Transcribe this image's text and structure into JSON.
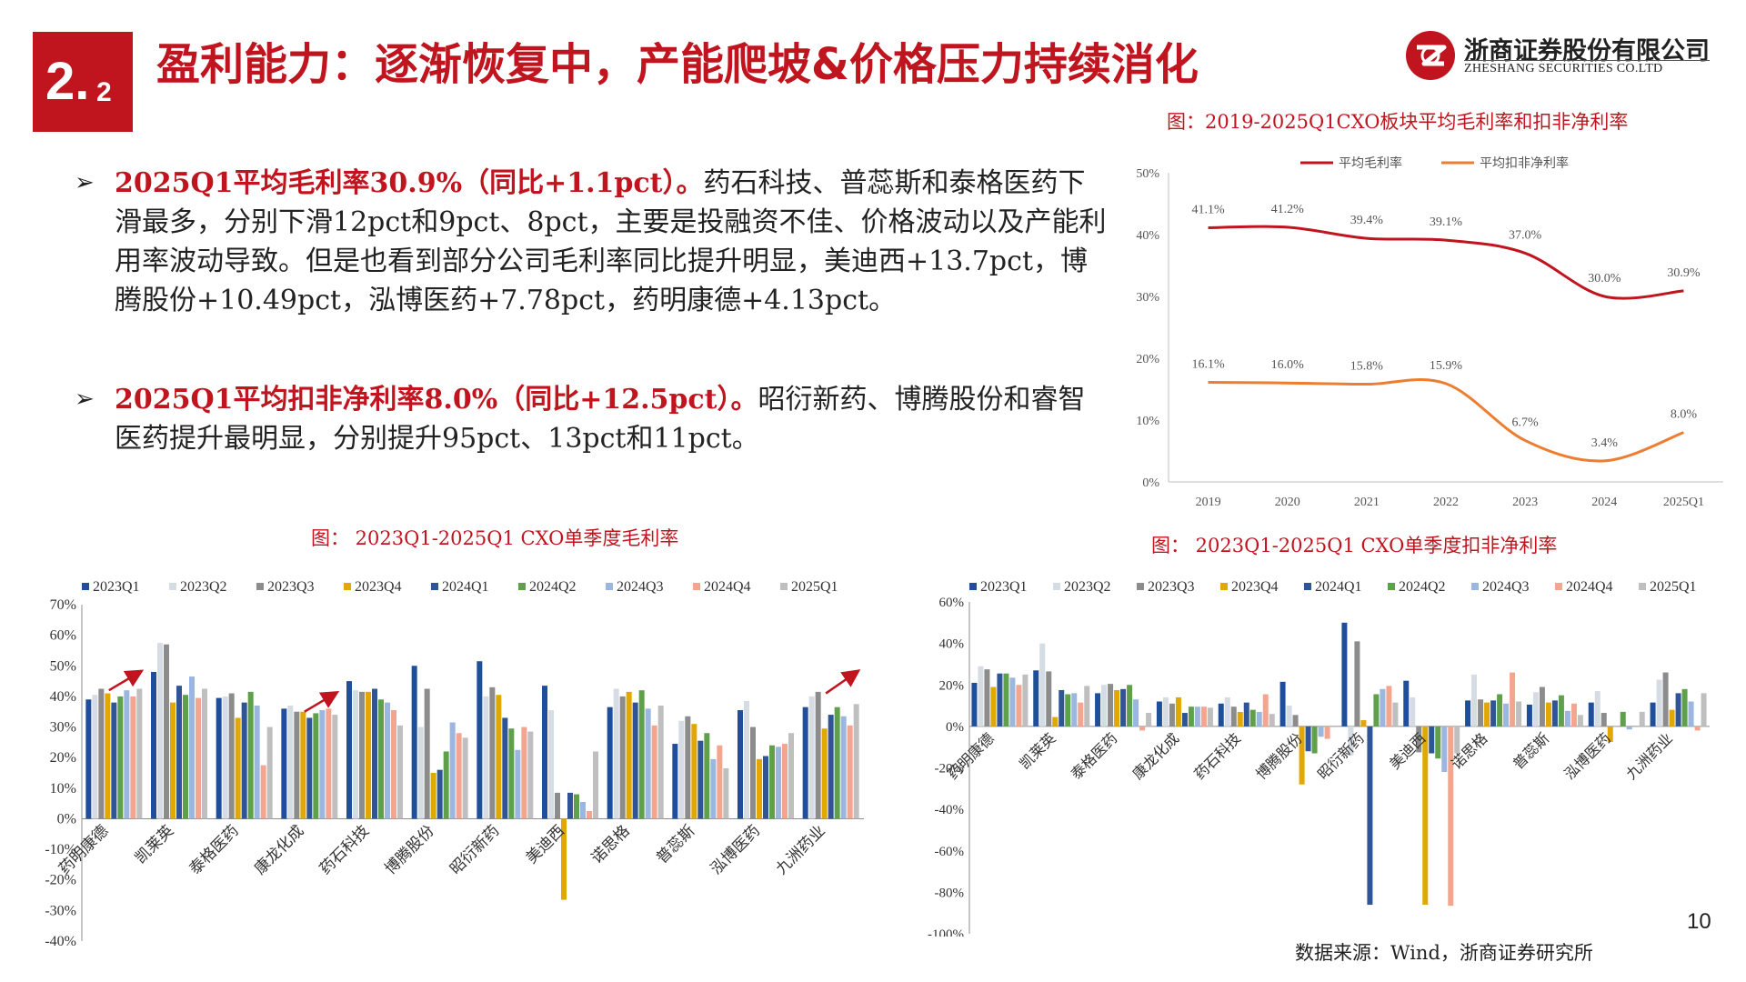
{
  "header": {
    "section_num_main": "2.",
    "section_num_sub": "2",
    "title": "盈利能力：逐渐恢复中，产能爬坡&价格压力持续消化",
    "logo_cn": "浙商证券股份有限公司",
    "logo_en": "ZHESHANG SECURITIES CO.LTD",
    "brand_color": "#c0141e"
  },
  "bullets": [
    {
      "highlight": "2025Q1平均毛利率30.9%（同比+1.1pct）。",
      "text": "药石科技、普蕊斯和泰格医药下滑最多，分别下滑12pct和9pct、8pct，主要是投融资不佳、价格波动以及产能利用率波动导致。但是也看到部分公司毛利率同比提升明显，美迪西+13.7pct，博腾股份+10.49pct，泓博医药+7.78pct，药明康德+4.13pct。"
    },
    {
      "highlight": "2025Q1平均扣非净利率8.0%（同比+12.5pct）。",
      "text": "昭衍新药、博腾股份和睿智医药提升最明显，分别提升95pct、13pct和11pct。"
    }
  ],
  "fig_top": {
    "caption": "图：2019-2025Q1CXO板块平均毛利率和扣非净利率"
  },
  "fig_left": {
    "caption": "图： 2023Q1-2025Q1 CXO单季度毛利率"
  },
  "fig_right": {
    "caption": "图： 2023Q1-2025Q1 CXO单季度扣非净利率"
  },
  "source": "数据来源：Wind，浙商证券研究所",
  "page_number": "10",
  "chart_data": [
    {
      "type": "line",
      "title": "",
      "x": [
        "2019",
        "2020",
        "2021",
        "2022",
        "2023",
        "2024",
        "2025Q1"
      ],
      "ylim": [
        0,
        50
      ],
      "yticks": [
        "0%",
        "10%",
        "20%",
        "30%",
        "40%",
        "50%"
      ],
      "legend_position": "top",
      "grid": false,
      "series": [
        {
          "name": "平均毛利率",
          "values": [
            41.1,
            41.2,
            39.4,
            39.1,
            37.0,
            30.0,
            30.9
          ],
          "labels": [
            "41.1%",
            "41.2%",
            "39.4%",
            "39.1%",
            "37.0%",
            "30.0%",
            "30.9%"
          ],
          "color": "#c0141e"
        },
        {
          "name": "平均扣非净利率",
          "values": [
            16.1,
            16.0,
            15.8,
            15.9,
            6.7,
            3.4,
            8.0
          ],
          "labels": [
            "16.1%",
            "16.0%",
            "15.8%",
            "15.9%",
            "6.7%",
            "3.4%",
            "8.0%"
          ],
          "color": "#ed7d31"
        }
      ]
    },
    {
      "type": "bar",
      "title": "",
      "categories": [
        "药明康德",
        "凯莱英",
        "泰格医药",
        "康龙化成",
        "药石科技",
        "博腾股份",
        "昭衍新药",
        "美迪西",
        "诺思格",
        "普蕊斯",
        "泓博医药",
        "九洲药业"
      ],
      "ylim": [
        -40,
        70
      ],
      "yticks": [
        "-40%",
        "-30%",
        "-20%",
        "-10%",
        "0%",
        "10%",
        "20%",
        "30%",
        "40%",
        "50%",
        "60%",
        "70%"
      ],
      "legend_position": "top",
      "grid": false,
      "series": [
        {
          "name": "2023Q1",
          "color": "#1f4e9a",
          "values": [
            39,
            48,
            39.5,
            36,
            45,
            50,
            51.5,
            43.5,
            36.5,
            24.5,
            35.5,
            36.5
          ]
        },
        {
          "name": "2023Q2",
          "color": "#d6dce4",
          "values": [
            40.5,
            57.5,
            40,
            37,
            42,
            30,
            40,
            35.5,
            42.5,
            32,
            38.5,
            40
          ]
        },
        {
          "name": "2023Q3",
          "color": "#8c8c8c",
          "values": [
            42.5,
            57,
            41,
            35,
            41.5,
            42.5,
            43,
            8.5,
            40,
            33.5,
            30,
            41.5
          ]
        },
        {
          "name": "2023Q4",
          "color": "#e0a800",
          "values": [
            41,
            38,
            33,
            35,
            41.5,
            15,
            40.5,
            -26.5,
            41.5,
            31,
            19.5,
            29.5
          ]
        },
        {
          "name": "2024Q1",
          "color": "#2f5597",
          "values": [
            38,
            43.5,
            38,
            33,
            42.5,
            16,
            33,
            8.5,
            38,
            25.5,
            20.5,
            34
          ]
        },
        {
          "name": "2024Q2",
          "color": "#5fa14a",
          "values": [
            40,
            40.5,
            41.5,
            34.5,
            39,
            22,
            29.5,
            8,
            42,
            28,
            24,
            36.5
          ]
        },
        {
          "name": "2024Q3",
          "color": "#9bb7e0",
          "values": [
            42,
            46.5,
            37,
            35.5,
            38,
            31.5,
            22.5,
            5.5,
            36,
            19.5,
            23.5,
            33.5
          ]
        },
        {
          "name": "2024Q4",
          "color": "#f4a590",
          "values": [
            40,
            39.5,
            17.5,
            36,
            35.5,
            28,
            30,
            2.5,
            30.5,
            24,
            24.5,
            30.5
          ]
        },
        {
          "name": "2025Q1",
          "color": "#bfbfbf",
          "values": [
            42.5,
            42.5,
            30,
            34,
            30.5,
            26.5,
            28.5,
            22,
            37,
            16.5,
            28,
            37.5
          ]
        }
      ]
    },
    {
      "type": "bar",
      "title": "",
      "categories": [
        "药明康德",
        "凯莱英",
        "泰格医药",
        "康龙化成",
        "药石科技",
        "博腾股份",
        "昭衍新药",
        "美迪西",
        "诺思格",
        "普蕊斯",
        "泓博医药",
        "九洲药业"
      ],
      "ylim": [
        -100,
        60
      ],
      "yticks": [
        "-100%",
        "-80%",
        "-60%",
        "-40%",
        "-20%",
        "0%",
        "20%",
        "40%",
        "60%"
      ],
      "legend_position": "top",
      "grid": false,
      "series": [
        {
          "name": "2023Q1",
          "color": "#1f4e9a",
          "values": [
            21,
            27,
            16,
            12,
            11,
            21.5,
            50,
            22,
            12.5,
            10.5,
            11.5,
            11.5
          ]
        },
        {
          "name": "2023Q2",
          "color": "#d6dce4",
          "values": [
            29,
            40,
            20,
            14,
            14,
            10,
            -14,
            14,
            25,
            16.5,
            17,
            22.5
          ]
        },
        {
          "name": "2023Q3",
          "color": "#8c8c8c",
          "values": [
            27.5,
            26.5,
            20.5,
            11,
            9.5,
            5.5,
            41,
            -12.5,
            13,
            19,
            6.5,
            26
          ]
        },
        {
          "name": "2023Q4",
          "color": "#e0a800",
          "values": [
            19,
            4.5,
            17.5,
            14,
            7,
            -28,
            3,
            -86,
            11.5,
            11.5,
            -7.5,
            8
          ]
        },
        {
          "name": "2024Q1",
          "color": "#2f5597",
          "values": [
            25.5,
            17.5,
            18,
            6.5,
            11.5,
            -12,
            -86,
            -13,
            12.5,
            12.5,
            0,
            16
          ]
        },
        {
          "name": "2024Q2",
          "color": "#5fa14a",
          "values": [
            25.5,
            15.5,
            20,
            9.5,
            8,
            -13,
            15.5,
            -15.5,
            15.5,
            15,
            7,
            18
          ]
        },
        {
          "name": "2024Q3",
          "color": "#9bb7e0",
          "values": [
            23.5,
            16,
            13,
            9.5,
            7,
            -5,
            18,
            -22,
            11,
            7.5,
            -1.5,
            12
          ]
        },
        {
          "name": "2024Q4",
          "color": "#f4a590",
          "values": [
            20,
            11.5,
            -2,
            9.5,
            15.5,
            -6,
            19.5,
            -86.5,
            26,
            11,
            0,
            -2
          ]
        },
        {
          "name": "2025Q1",
          "color": "#bfbfbf",
          "values": [
            25,
            19.5,
            6.5,
            9,
            6,
            0,
            11.5,
            -13,
            12,
            5.5,
            7,
            16
          ]
        }
      ]
    }
  ]
}
